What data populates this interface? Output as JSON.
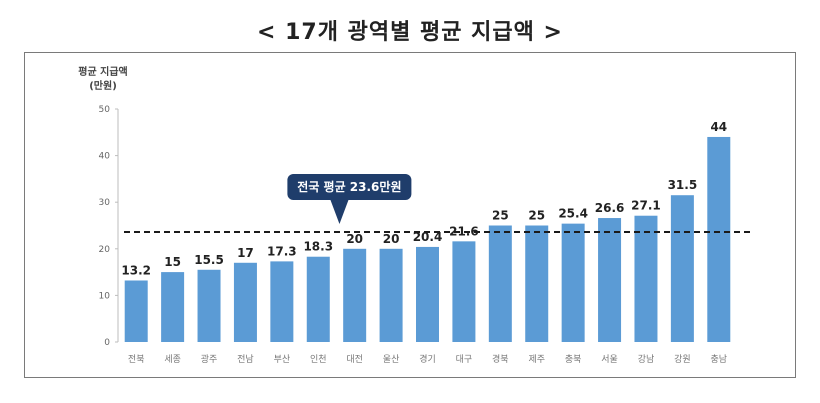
{
  "title": "< 17개 광역별 평균 지급액 >",
  "chart_data": {
    "type": "bar",
    "ylabel_lines": [
      "평균 지급액",
      "(만원)"
    ],
    "categories": [
      "전북",
      "세종",
      "광주",
      "전남",
      "부산",
      "인천",
      "대전",
      "울산",
      "경기",
      "대구",
      "경북",
      "제주",
      "충북",
      "서울",
      "강남",
      "강원",
      "충남"
    ],
    "values": [
      13.2,
      15,
      15.5,
      17,
      17.3,
      18.3,
      20,
      20,
      20.4,
      21.6,
      25,
      25,
      25.4,
      26.6,
      27.1,
      31.5,
      44
    ],
    "value_labels": [
      "13.2",
      "15",
      "15.5",
      "17",
      "17.3",
      "18.3",
      "20",
      "20",
      "20.4",
      "21.6",
      "25",
      "25",
      "25.4",
      "26.6",
      "27.1",
      "31.5",
      "44"
    ],
    "ylim": [
      0,
      50
    ],
    "yticks": [
      0,
      10,
      20,
      30,
      40,
      50
    ],
    "reference_line": {
      "value": 23.6,
      "label": "전국 평균 23.6만원",
      "style": "dashed"
    },
    "grid": false,
    "bar_color": "#5b9bd5",
    "callout_color": "#1f3d6b"
  }
}
